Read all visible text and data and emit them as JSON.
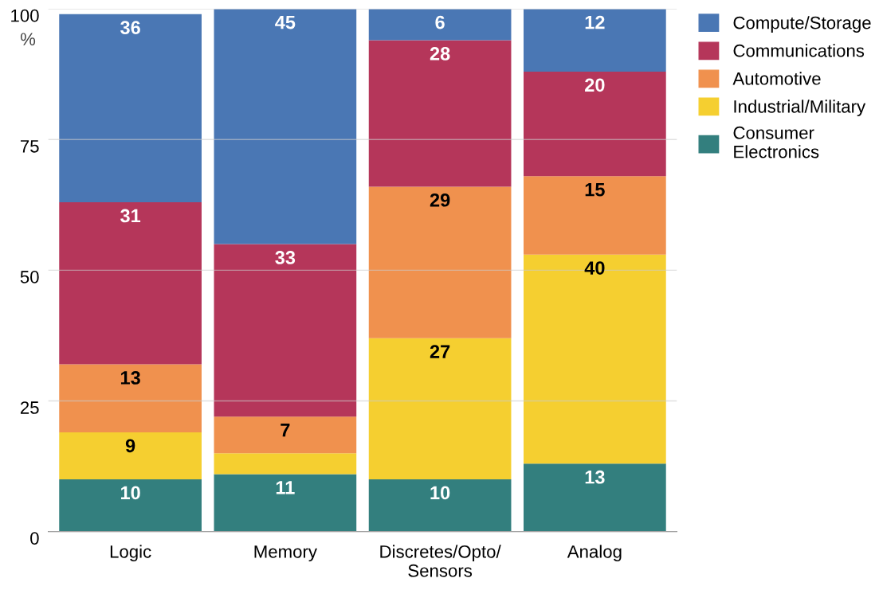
{
  "chart_data": {
    "type": "bar",
    "stacked": true,
    "ylabel": "%",
    "categories": [
      "Logic",
      "Memory",
      "Discretes/Opto/\nSensors",
      "Analog"
    ],
    "series": [
      {
        "name": "Consumer\nElectronics",
        "color": "#337f7e",
        "values": [
          10,
          11,
          10,
          13
        ],
        "value_labels": [
          "10",
          "11",
          "10",
          "13"
        ]
      },
      {
        "name": "Industrial/Military",
        "color": "#f5cf30",
        "values": [
          9,
          4,
          27,
          40
        ],
        "value_labels": [
          "9",
          null,
          "27",
          "40"
        ]
      },
      {
        "name": "Automotive",
        "color": "#f0914e",
        "values": [
          13,
          7,
          29,
          15
        ],
        "value_labels": [
          "13",
          "7",
          "29",
          "15"
        ]
      },
      {
        "name": "Communications",
        "color": "#b5365a",
        "values": [
          31,
          33,
          28,
          20
        ],
        "value_labels": [
          "31",
          "33",
          "28",
          "20"
        ]
      },
      {
        "name": "Compute/Storage",
        "color": "#4a77b4",
        "values": [
          36,
          45,
          6,
          12
        ],
        "value_labels": [
          "36",
          "45",
          "6",
          "12"
        ]
      }
    ],
    "ylim": [
      0,
      100
    ],
    "yticks": [
      0,
      25,
      50,
      75,
      100
    ],
    "grid": "y",
    "legend": "top right"
  }
}
